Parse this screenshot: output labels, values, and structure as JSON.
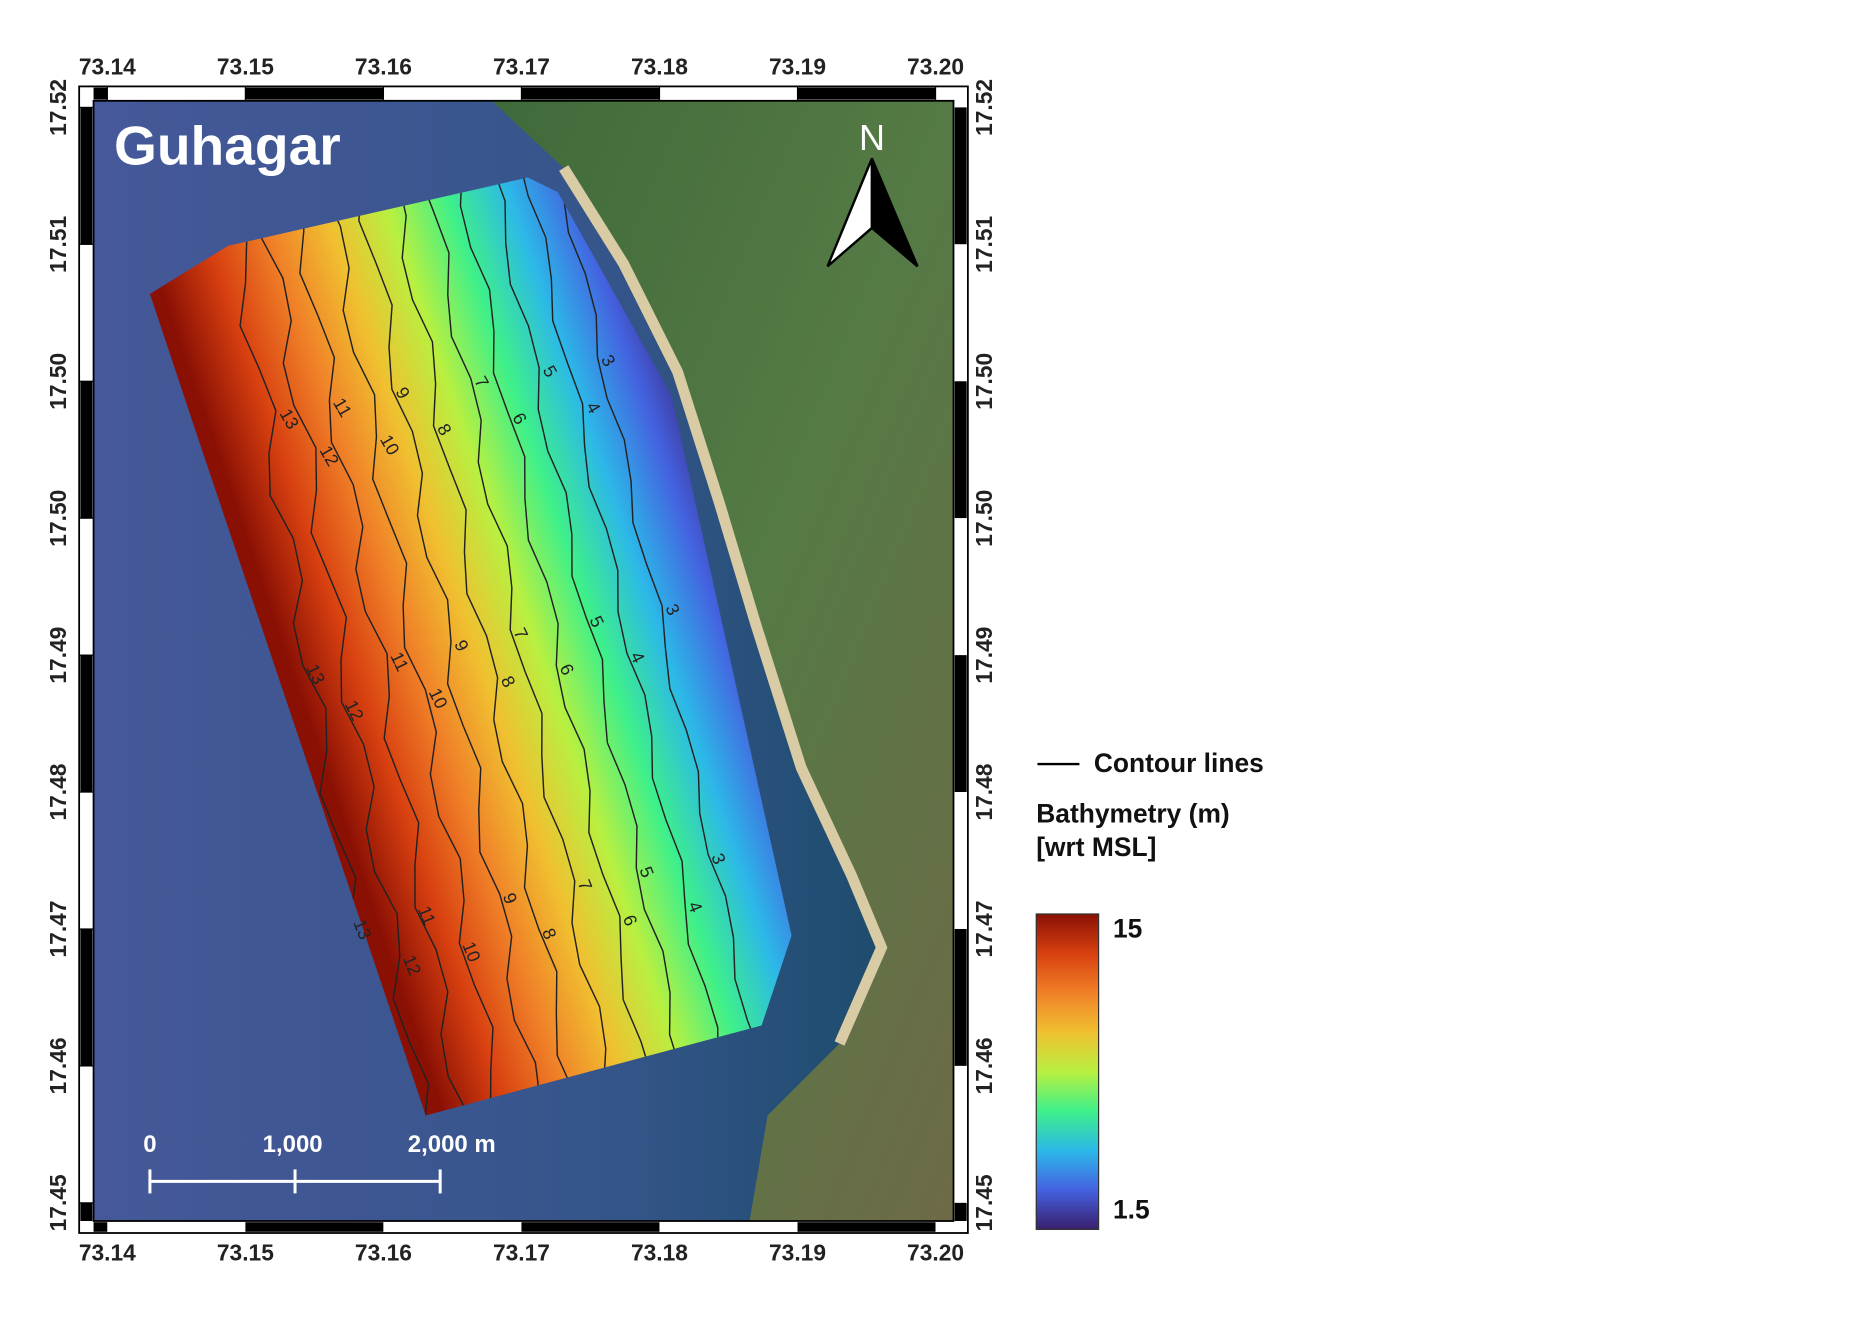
{
  "map": {
    "title": "Guhagar",
    "north_label": "N",
    "xlim": [
      73.139,
      73.2013
    ],
    "xticks": [
      73.14,
      73.15,
      73.16,
      73.17,
      73.18,
      73.19,
      {
        "value": 73.2,
        "label": "73.20"
      }
    ],
    "ylim": [
      17.4525,
      17.5204
    ],
    "yticks": [
      17.52,
      {
        "value": 17.5117,
        "label": "17.51"
      },
      {
        "value": 17.5034,
        "label": "17.50"
      },
      {
        "value": 17.4951,
        "label": "17.50"
      },
      {
        "value": 17.4868,
        "label": "17.49"
      },
      {
        "value": 17.4785,
        "label": "17.48"
      },
      {
        "value": 17.4702,
        "label": "17.47"
      },
      {
        "value": 17.4619,
        "label": "17.46"
      },
      {
        "value": 17.4536,
        "label": "17.45"
      }
    ],
    "contour_levels": [
      3,
      4,
      5,
      6,
      7,
      8,
      9,
      10,
      11,
      12,
      13
    ],
    "scale_bar": {
      "ticks": [
        0,
        {
          "value": 1000,
          "label": "1,000"
        },
        {
          "value": 2000,
          "label": "2,000 m"
        }
      ]
    },
    "legend": {
      "contour_label": "Contour lines"
    },
    "colorbar": {
      "title": "Bathymetry (m)",
      "subtitle": "[wrt MSL]",
      "min": 1.5,
      "max": 15,
      "colors": [
        "#3a1f6e",
        "#4462e0",
        "#2cb8e8",
        "#3ef08a",
        "#b8f040",
        "#f0c030",
        "#f08028",
        "#d84010",
        "#8a1004"
      ]
    }
  }
}
